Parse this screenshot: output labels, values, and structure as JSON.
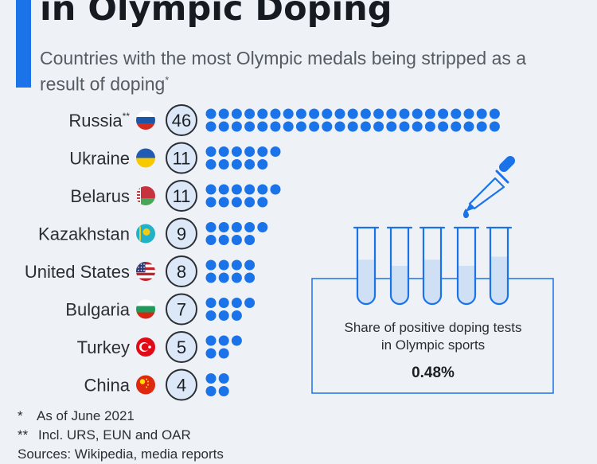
{
  "header": {
    "title": "in Olympic Doping",
    "subtitle": "Countries with the most Olympic medals being stripped as a result of doping",
    "subtitle_marker": "*"
  },
  "chart_data": {
    "type": "pictogram",
    "categories": [
      "Russia",
      "Ukraine",
      "Belarus",
      "Kazakhstan",
      "United States",
      "Bulgaria",
      "Turkey",
      "China"
    ],
    "category_markers": [
      "**",
      "",
      "",
      "",
      "",
      "",
      "",
      ""
    ],
    "values": [
      46,
      11,
      11,
      9,
      8,
      7,
      5,
      4
    ],
    "flags": [
      "russia-flag",
      "ukraine-flag",
      "belarus-flag",
      "kazakhstan-flag",
      "usa-flag",
      "bulgaria-flag",
      "turkey-flag",
      "china-flag"
    ],
    "dot_color": "#1a73e8",
    "badge_fill": "#dce8f7",
    "inset": {
      "label": "Share of positive doping tests in Olympic sports",
      "label_lines": [
        "Share of positive doping tests",
        "in Olympic sports"
      ],
      "value": "0.48%"
    }
  },
  "footnotes": {
    "note1_mark": "*",
    "note1_text": "As of June 2021",
    "note2_mark": "**",
    "note2_text": "Incl. URS, EUN and OAR",
    "sources": "Sources: Wikipedia, media reports"
  }
}
